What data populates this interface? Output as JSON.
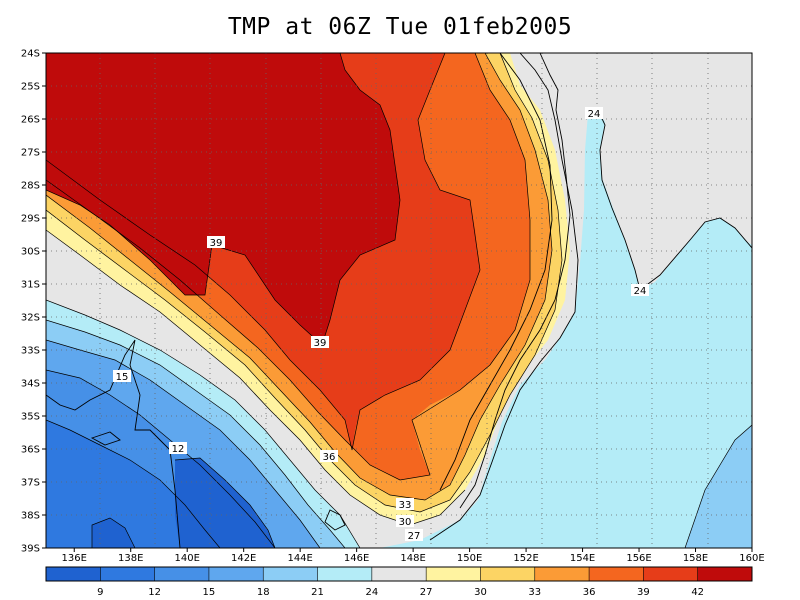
{
  "title": "TMP at 06Z Tue 01feb2005",
  "colors": {
    "c6": "#1f62d0",
    "c9": "#2f79e0",
    "c12": "#4690e7",
    "c15": "#5fa7ee",
    "c18": "#8ccdf5",
    "c21": "#b4ecf7",
    "c24": "#e6e6e6",
    "c27": "#fff3a0",
    "c30": "#fcd464",
    "c33": "#fb9b36",
    "c36": "#f4661f",
    "c39": "#e63d19",
    "c42": "#bf0b0b",
    "land": "#e6e6e6",
    "ocean": "#b4ecf7"
  },
  "axes": {
    "lat_ticks": [
      "24S",
      "25S",
      "26S",
      "27S",
      "28S",
      "29S",
      "30S",
      "31S",
      "32S",
      "33S",
      "34S",
      "35S",
      "36S",
      "37S",
      "38S",
      "39S"
    ],
    "lon_ticks": [
      "136E",
      "138E",
      "140E",
      "142E",
      "144E",
      "146E",
      "148E",
      "150E",
      "152E",
      "154E",
      "156E",
      "158E",
      "160E"
    ]
  },
  "contour_labels": [
    {
      "text": "39",
      "id": "label-39a"
    },
    {
      "text": "39",
      "id": "label-39b"
    },
    {
      "text": "36",
      "id": "label-36"
    },
    {
      "text": "33",
      "id": "label-33"
    },
    {
      "text": "30",
      "id": "label-30"
    },
    {
      "text": "27",
      "id": "label-27"
    },
    {
      "text": "24",
      "id": "label-24a"
    },
    {
      "text": "24",
      "id": "label-24b"
    },
    {
      "text": "15",
      "id": "label-15"
    },
    {
      "text": "12",
      "id": "label-12"
    }
  ],
  "colorbar": {
    "labels": [
      "9",
      "12",
      "15",
      "18",
      "21",
      "24",
      "27",
      "30",
      "33",
      "36",
      "39",
      "42"
    ]
  }
}
